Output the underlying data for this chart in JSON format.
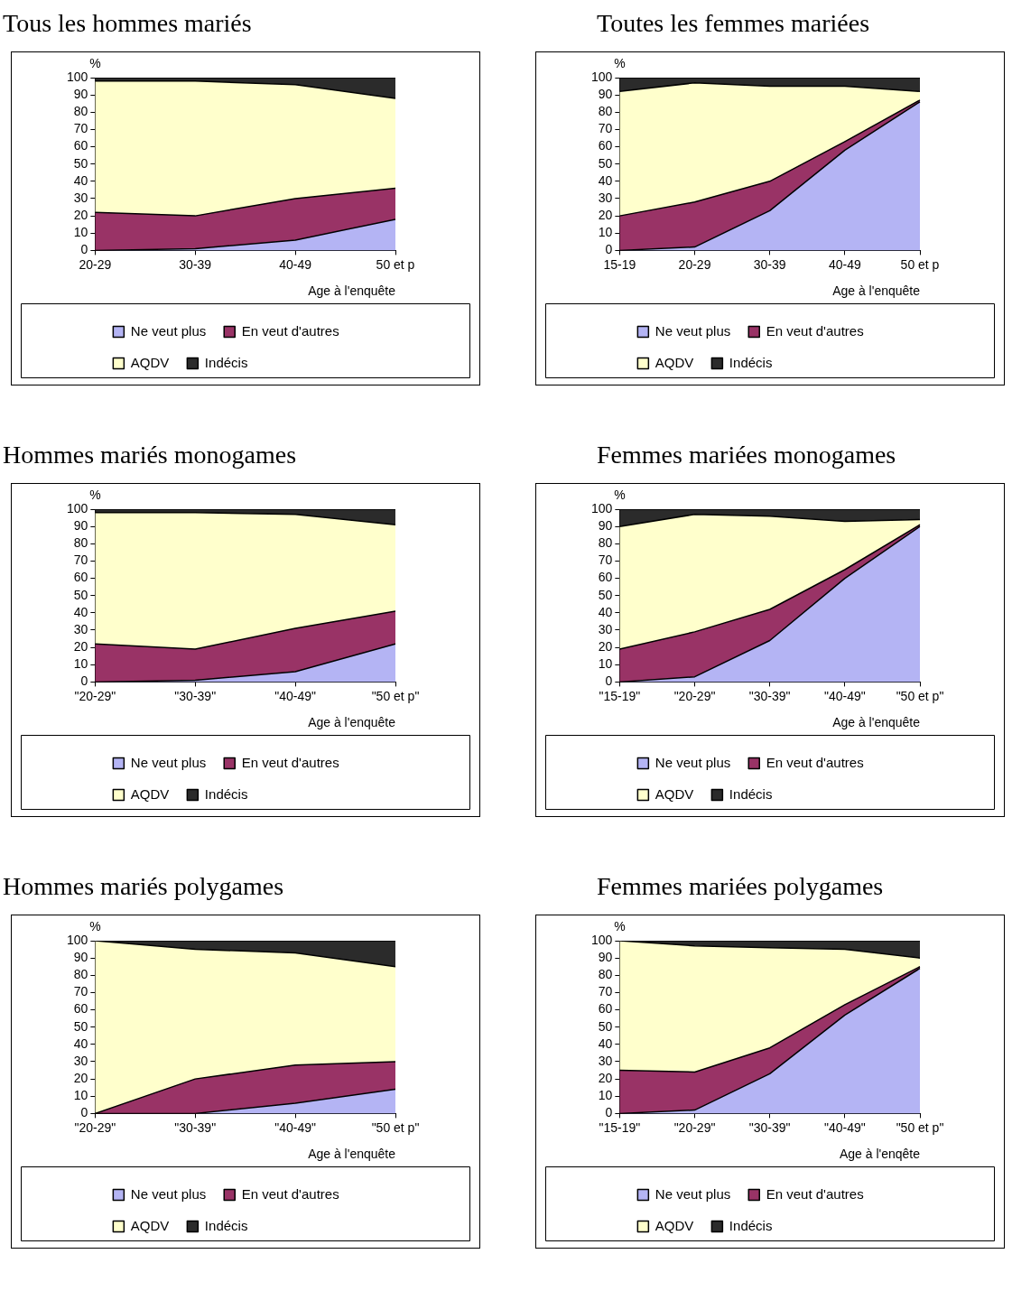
{
  "chart_data": [
    {
      "type": "area",
      "title": "Tous les hommes mariés",
      "xlabel": "Age à l'enquête",
      "ylabel": "%",
      "categories": [
        "20-29",
        "30-39",
        "40-49",
        "50 et p"
      ],
      "stacked": true,
      "legend": "bottom",
      "ylim": [
        0,
        100
      ],
      "yticks": [
        0,
        10,
        20,
        30,
        40,
        50,
        60,
        70,
        80,
        90,
        100
      ],
      "series": [
        {
          "name": "Ne veut plus",
          "color": "#b4b4f4",
          "values": [
            0,
            1,
            6,
            18
          ]
        },
        {
          "name": "En veut d'autres",
          "color": "#993366",
          "values": [
            22,
            19,
            24,
            18
          ]
        },
        {
          "name": "AQDV",
          "color": "#ffffcc",
          "values": [
            76,
            78,
            66,
            52
          ]
        },
        {
          "name": "Indécis",
          "color": "#2b2b2b",
          "values": [
            2,
            2,
            4,
            12
          ]
        }
      ]
    },
    {
      "type": "area",
      "title": "Toutes les femmes mariées",
      "xlabel": "Age à l'enquête",
      "ylabel": "%",
      "categories": [
        "15-19",
        "20-29",
        "30-39",
        "40-49",
        "50 et p"
      ],
      "stacked": true,
      "legend": "bottom",
      "ylim": [
        0,
        100
      ],
      "yticks": [
        0,
        10,
        20,
        30,
        40,
        50,
        60,
        70,
        80,
        90,
        100
      ],
      "series": [
        {
          "name": "Ne veut plus",
          "color": "#b4b4f4",
          "values": [
            0,
            2,
            23,
            58,
            86
          ]
        },
        {
          "name": "En veut d'autres",
          "color": "#993366",
          "values": [
            20,
            26,
            17,
            5,
            1
          ]
        },
        {
          "name": "AQDV",
          "color": "#ffffcc",
          "values": [
            72,
            69,
            55,
            32,
            5
          ]
        },
        {
          "name": "Indécis",
          "color": "#2b2b2b",
          "values": [
            8,
            3,
            5,
            5,
            8
          ]
        }
      ]
    },
    {
      "type": "area",
      "title": "Hommes mariés monogames",
      "xlabel": "Age à l'enquête",
      "ylabel": "%",
      "categories": [
        "\"20-29\"",
        "\"30-39\"",
        "\"40-49\"",
        "\"50 et p\""
      ],
      "stacked": true,
      "legend": "bottom",
      "ylim": [
        0,
        100
      ],
      "yticks": [
        0,
        10,
        20,
        30,
        40,
        50,
        60,
        70,
        80,
        90,
        100
      ],
      "series": [
        {
          "name": "Ne veut plus",
          "color": "#b4b4f4",
          "values": [
            0,
            1,
            6,
            22
          ]
        },
        {
          "name": "En veut d'autres",
          "color": "#993366",
          "values": [
            22,
            18,
            25,
            19
          ]
        },
        {
          "name": "AQDV",
          "color": "#ffffcc",
          "values": [
            76,
            79,
            66,
            50
          ]
        },
        {
          "name": "Indécis",
          "color": "#2b2b2b",
          "values": [
            2,
            2,
            3,
            9
          ]
        }
      ]
    },
    {
      "type": "area",
      "title": "Femmes mariées monogames",
      "xlabel": "Age à l'enquête",
      "ylabel": "%",
      "categories": [
        "\"15-19\"",
        "\"20-29\"",
        "\"30-39\"",
        "\"40-49\"",
        "\"50 et p\""
      ],
      "stacked": true,
      "legend": "bottom",
      "ylim": [
        0,
        100
      ],
      "yticks": [
        0,
        10,
        20,
        30,
        40,
        50,
        60,
        70,
        80,
        90,
        100
      ],
      "series": [
        {
          "name": "Ne veut plus",
          "color": "#b4b4f4",
          "values": [
            0,
            3,
            24,
            60,
            90
          ]
        },
        {
          "name": "En veut d'autres",
          "color": "#993366",
          "values": [
            19,
            26,
            18,
            5,
            1
          ]
        },
        {
          "name": "AQDV",
          "color": "#ffffcc",
          "values": [
            71,
            68,
            54,
            28,
            3
          ]
        },
        {
          "name": "Indécis",
          "color": "#2b2b2b",
          "values": [
            10,
            3,
            4,
            7,
            6
          ]
        }
      ]
    },
    {
      "type": "area",
      "title": "Hommes mariés polygames",
      "xlabel": "Age à l'enquête",
      "ylabel": "%",
      "categories": [
        "\"20-29\"",
        "\"30-39\"",
        "\"40-49\"",
        "\"50 et p\""
      ],
      "stacked": true,
      "legend": "bottom",
      "ylim": [
        0,
        100
      ],
      "yticks": [
        0,
        10,
        20,
        30,
        40,
        50,
        60,
        70,
        80,
        90,
        100
      ],
      "series": [
        {
          "name": "Ne veut plus",
          "color": "#b4b4f4",
          "values": [
            0,
            0,
            6,
            14
          ]
        },
        {
          "name": "En veut d'autres",
          "color": "#993366",
          "values": [
            0,
            20,
            22,
            16
          ]
        },
        {
          "name": "AQDV",
          "color": "#ffffcc",
          "values": [
            100,
            75,
            65,
            55
          ]
        },
        {
          "name": "Indécis",
          "color": "#2b2b2b",
          "values": [
            0,
            5,
            7,
            15
          ]
        }
      ]
    },
    {
      "type": "area",
      "title": "Femmes mariées polygames",
      "xlabel": "Age à l'enqête",
      "ylabel": "%",
      "categories": [
        "\"15-19\"",
        "\"20-29\"",
        "\"30-39\"",
        "\"40-49\"",
        "\"50 et p\""
      ],
      "stacked": true,
      "legend": "bottom",
      "ylim": [
        0,
        100
      ],
      "yticks": [
        0,
        10,
        20,
        30,
        40,
        50,
        60,
        70,
        80,
        90,
        100
      ],
      "series": [
        {
          "name": "Ne veut plus",
          "color": "#b4b4f4",
          "values": [
            0,
            2,
            23,
            57,
            84
          ]
        },
        {
          "name": "En veut d'autres",
          "color": "#993366",
          "values": [
            25,
            22,
            15,
            6,
            1
          ]
        },
        {
          "name": "AQDV",
          "color": "#ffffcc",
          "values": [
            75,
            73,
            58,
            32,
            5
          ]
        },
        {
          "name": "Indécis",
          "color": "#2b2b2b",
          "values": [
            0,
            3,
            4,
            5,
            10
          ]
        }
      ]
    }
  ]
}
